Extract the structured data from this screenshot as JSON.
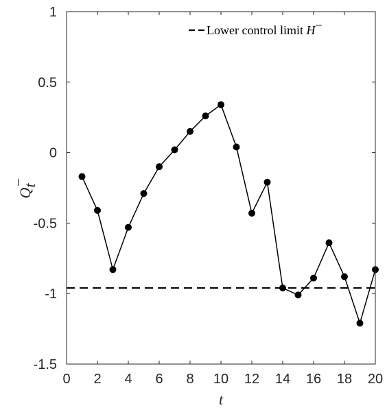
{
  "chart_data": {
    "type": "line",
    "xlabel": "t",
    "ylabel": {
      "base": "Q",
      "sub": "t",
      "sup": "−"
    },
    "xlim": [
      0,
      20
    ],
    "ylim": [
      -1.5,
      1
    ],
    "xticks": [
      0,
      2,
      4,
      6,
      8,
      10,
      12,
      14,
      16,
      18,
      20
    ],
    "yticks": [
      -1.5,
      -1,
      -0.5,
      0,
      0.5,
      1
    ],
    "ytick_labels": [
      "-1.5",
      "-1",
      "-0.5",
      "0",
      "0.5",
      "1"
    ],
    "grid": false,
    "legend_position": "top-right",
    "series": [
      {
        "style": "solid line with filled circle markers",
        "color": "#000000",
        "x": [
          1,
          2,
          3,
          4,
          5,
          6,
          7,
          8,
          9,
          10,
          11,
          12,
          13,
          14,
          15,
          16,
          17,
          18,
          19,
          20
        ],
        "y": [
          -0.17,
          -0.41,
          -0.83,
          -0.53,
          -0.29,
          -0.1,
          0.02,
          0.15,
          0.26,
          0.34,
          0.04,
          -0.43,
          -0.21,
          -0.96,
          -1.01,
          -0.89,
          -0.64,
          -0.88,
          -1.21,
          -0.83
        ]
      }
    ],
    "reference_lines": [
      {
        "name_text": "Lower control limit ",
        "name_math": "H",
        "name_sup": "−",
        "y": -0.96,
        "style": "dashed",
        "color": "#000000"
      }
    ]
  }
}
